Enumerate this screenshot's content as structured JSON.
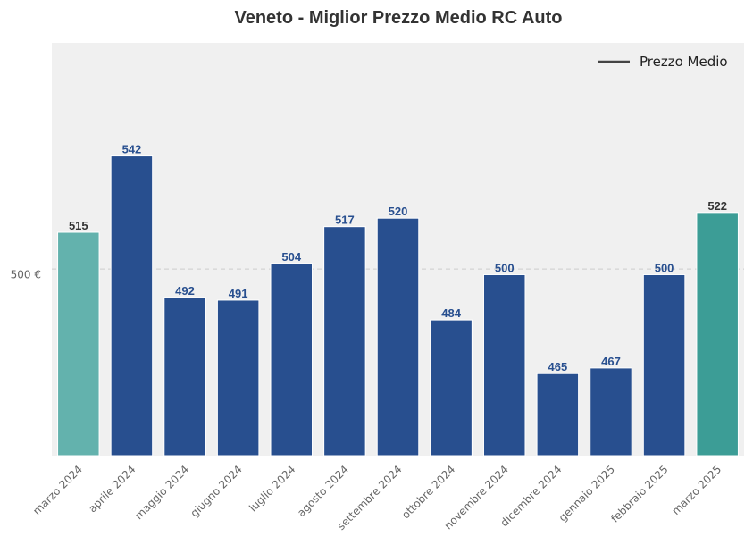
{
  "chart_data": {
    "type": "bar",
    "title": "Veneto - Miglior Prezzo Medio RC Auto",
    "xlabel": "",
    "ylabel": "",
    "categories": [
      "marzo 2024",
      "aprile 2024",
      "maggio 2024",
      "giugno 2024",
      "luglio 2024",
      "agosto 2024",
      "settembre 2024",
      "ottobre 2024",
      "novembre 2024",
      "dicembre 2024",
      "gennaio 2025",
      "febbraio 2025",
      "marzo 2025"
    ],
    "values": [
      515,
      542,
      492,
      491,
      504,
      517,
      520,
      484,
      500,
      465,
      467,
      500,
      522
    ],
    "ylim": [
      436,
      582
    ],
    "yticks": [
      500
    ],
    "ytick_labels": [
      "500 €"
    ],
    "reference_line": 502,
    "legend": {
      "label": "Prezzo Medio",
      "position": "top-right"
    },
    "colors": {
      "bar": "#284f8f",
      "first_bar": "#63b2ad",
      "last_bar": "#3c9d96",
      "value_label": "#284f8f",
      "value_label_highlight": "#333333",
      "plot_bg": "#f0f0f0",
      "legend_line": "#444444",
      "reference_line": "#cccccc"
    },
    "grid": false
  }
}
